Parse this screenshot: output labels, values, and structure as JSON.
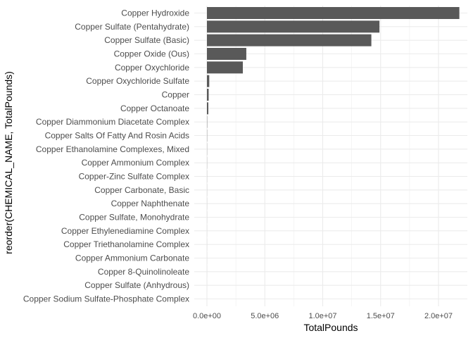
{
  "chart_data": {
    "type": "bar",
    "orientation": "horizontal",
    "xlabel": "TotalPounds",
    "ylabel": "reorder(CHEMICAL_NAME, TotalPounds)",
    "xlim": [
      0,
      22000000
    ],
    "x_ticks": [
      0,
      5000000,
      10000000,
      15000000,
      20000000
    ],
    "x_tick_labels": [
      "0.0e+00",
      "5.0e+06",
      "1.0e+07",
      "1.5e+07",
      "2.0e+07"
    ],
    "grid": true,
    "bar_color": "#595959",
    "categories": [
      "Copper Hydroxide",
      "Copper Sulfate (Pentahydrate)",
      "Copper Sulfate (Basic)",
      "Copper Oxide (Ous)",
      "Copper Oxychloride",
      "Copper Oxychloride Sulfate",
      "Copper",
      "Copper Octanoate",
      "Copper Diammonium Diacetate Complex",
      "Copper Salts Of Fatty And Rosin Acids",
      "Copper Ethanolamine Complexes, Mixed",
      "Copper Ammonium Complex",
      "Copper-Zinc Sulfate Complex",
      "Copper Carbonate, Basic",
      "Copper Naphthenate",
      "Copper Sulfate, Monohydrate",
      "Copper Ethylenediamine Complex",
      "Copper Triethanolamine Complex",
      "Copper Ammonium Carbonate",
      "Copper 8-Quinolinoleate",
      "Copper Sulfate (Anhydrous)",
      "Copper Sodium Sulfate-Phosphate Complex"
    ],
    "values": [
      21800000,
      14900000,
      14200000,
      3400000,
      3100000,
      200000,
      150000,
      120000,
      20000,
      15000,
      10000,
      8000,
      6000,
      5000,
      4000,
      3000,
      2500,
      2000,
      1500,
      1000,
      500,
      200
    ]
  }
}
